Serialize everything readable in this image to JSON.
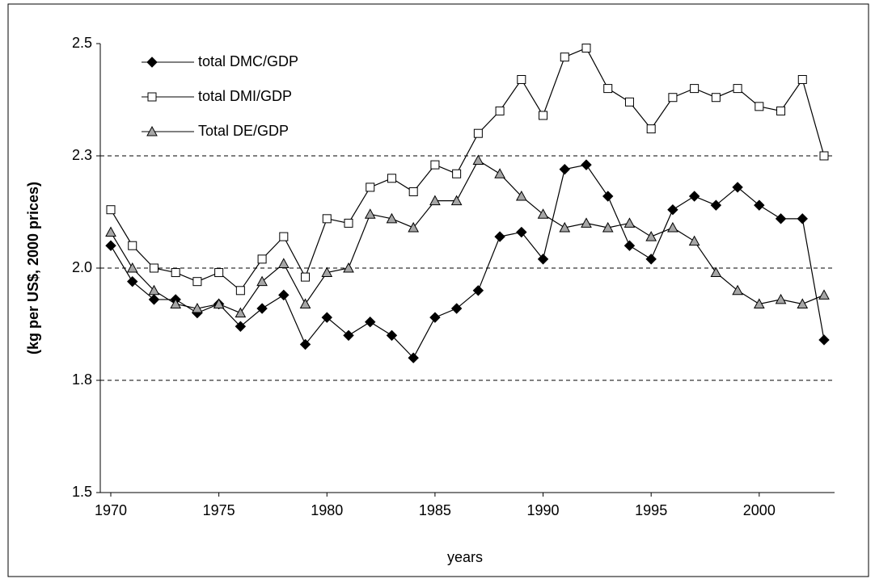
{
  "chart_data": {
    "type": "line",
    "x_label": "years",
    "y_label": "(kg per US$, 2000 prices)",
    "categories": [
      "1970",
      null,
      null,
      null,
      null,
      "1975",
      null,
      null,
      null,
      null,
      "1980",
      null,
      null,
      null,
      null,
      "1985",
      null,
      null,
      null,
      null,
      "1990",
      null,
      null,
      null,
      null,
      "1995",
      null,
      null,
      null,
      null,
      "2000",
      null,
      null,
      null
    ],
    "series": [
      {
        "name": "total DMC/GDP",
        "marker": "diamond",
        "color": "#000000",
        "values": [
          2.05,
          1.97,
          1.93,
          1.93,
          1.9,
          1.92,
          1.87,
          1.91,
          1.94,
          1.83,
          1.89,
          1.85,
          1.88,
          1.85,
          1.8,
          1.89,
          1.91,
          1.95,
          2.07,
          2.08,
          2.02,
          2.22,
          2.23,
          2.16,
          2.05,
          2.02,
          2.13,
          2.16,
          2.14,
          2.18,
          2.14,
          2.11,
          2.11,
          1.84
        ]
      },
      {
        "name": "total DMI/GDP",
        "marker": "square",
        "color": "#ffffff",
        "values": [
          2.13,
          2.05,
          2.0,
          1.99,
          1.97,
          1.99,
          1.95,
          2.02,
          2.07,
          1.98,
          2.11,
          2.1,
          2.18,
          2.2,
          2.17,
          2.23,
          2.21,
          2.3,
          2.35,
          2.42,
          2.34,
          2.47,
          2.49,
          2.4,
          2.37,
          2.31,
          2.38,
          2.4,
          2.38,
          2.4,
          2.36,
          2.35,
          2.42,
          2.25
        ]
      },
      {
        "name": "Total DE/GDP",
        "marker": "triangle",
        "color": "#a6a6a6",
        "values": [
          2.08,
          2.0,
          1.95,
          1.92,
          1.91,
          1.92,
          1.9,
          1.97,
          2.01,
          1.92,
          1.99,
          2.0,
          2.12,
          2.11,
          2.09,
          2.15,
          2.15,
          2.24,
          2.21,
          2.16,
          2.12,
          2.09,
          2.1,
          2.09,
          2.1,
          2.07,
          2.09,
          2.06,
          1.99,
          1.95,
          1.92,
          1.93,
          1.92,
          1.94
        ]
      }
    ],
    "ylim": [
      1.5,
      2.5
    ],
    "yticks": [
      1.5,
      {
        "value": 1.75,
        "label": "1.8"
      },
      {
        "value": 2,
        "label": "2.0"
      },
      {
        "value": 2.25,
        "label": "2.3"
      },
      2.5
    ],
    "grid": true,
    "legend": "top-left"
  }
}
